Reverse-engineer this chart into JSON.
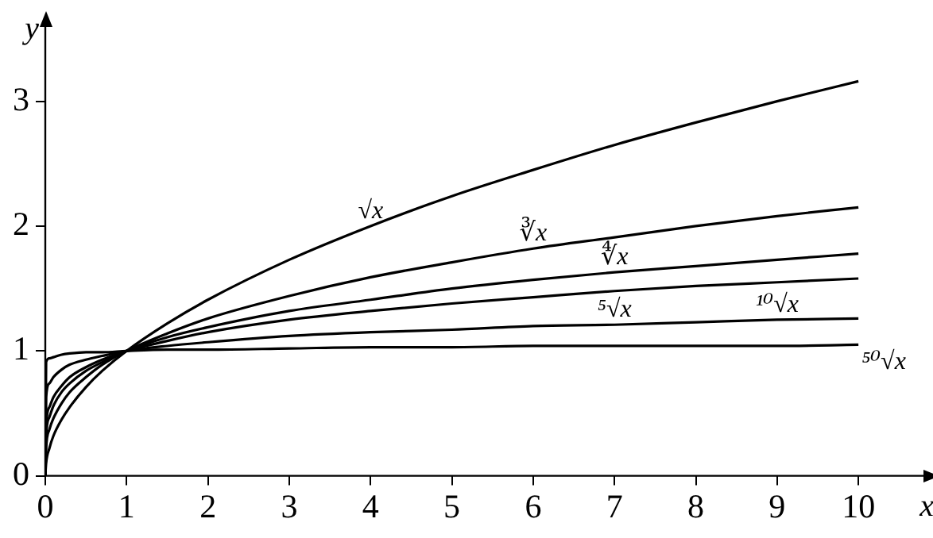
{
  "chart_data": {
    "type": "line",
    "xlabel": "x",
    "ylabel": "y",
    "x": [
      0,
      0.01,
      0.05,
      0.1,
      0.2,
      0.3,
      0.5,
      0.7,
      1,
      1.5,
      2,
      3,
      4,
      5,
      6,
      7,
      8,
      9,
      10
    ],
    "series": [
      {
        "name": "√x",
        "color": "#000000",
        "values": [
          0,
          0.1,
          0.22,
          0.32,
          0.45,
          0.55,
          0.71,
          0.84,
          1,
          1.22,
          1.41,
          1.73,
          2,
          2.24,
          2.45,
          2.65,
          2.83,
          3,
          3.16
        ]
      },
      {
        "name": "∛x",
        "color": "#000000",
        "values": [
          0,
          0.22,
          0.37,
          0.46,
          0.58,
          0.67,
          0.79,
          0.89,
          1,
          1.14,
          1.26,
          1.44,
          1.59,
          1.71,
          1.82,
          1.91,
          2,
          2.08,
          2.15
        ]
      },
      {
        "name": "∜x",
        "color": "#000000",
        "values": [
          0,
          0.32,
          0.47,
          0.56,
          0.67,
          0.74,
          0.84,
          0.91,
          1,
          1.11,
          1.19,
          1.32,
          1.41,
          1.5,
          1.57,
          1.63,
          1.68,
          1.73,
          1.78
        ]
      },
      {
        "name": "⁵√x",
        "color": "#000000",
        "values": [
          0,
          0.4,
          0.55,
          0.63,
          0.72,
          0.79,
          0.87,
          0.93,
          1,
          1.08,
          1.15,
          1.25,
          1.32,
          1.38,
          1.43,
          1.48,
          1.52,
          1.55,
          1.58
        ]
      },
      {
        "name": "¹⁰√x",
        "color": "#000000",
        "values": [
          0,
          0.63,
          0.74,
          0.79,
          0.85,
          0.89,
          0.93,
          0.96,
          1,
          1.04,
          1.07,
          1.12,
          1.15,
          1.17,
          1.2,
          1.21,
          1.23,
          1.25,
          1.26
        ]
      },
      {
        "name": "⁵⁰√x",
        "color": "#000000",
        "values": [
          0,
          0.91,
          0.94,
          0.95,
          0.97,
          0.98,
          0.99,
          0.99,
          1,
          1.01,
          1.01,
          1.02,
          1.03,
          1.03,
          1.04,
          1.04,
          1.04,
          1.04,
          1.05
        ]
      }
    ],
    "xlim": [
      0,
      10.8
    ],
    "ylim": [
      0,
      3.6
    ],
    "xticks": [
      0,
      1,
      2,
      3,
      4,
      5,
      6,
      7,
      8,
      9,
      10
    ],
    "yticks": [
      0,
      1,
      2,
      3
    ],
    "grid": false,
    "legend": false,
    "marker": "none",
    "line_style": "solid"
  }
}
